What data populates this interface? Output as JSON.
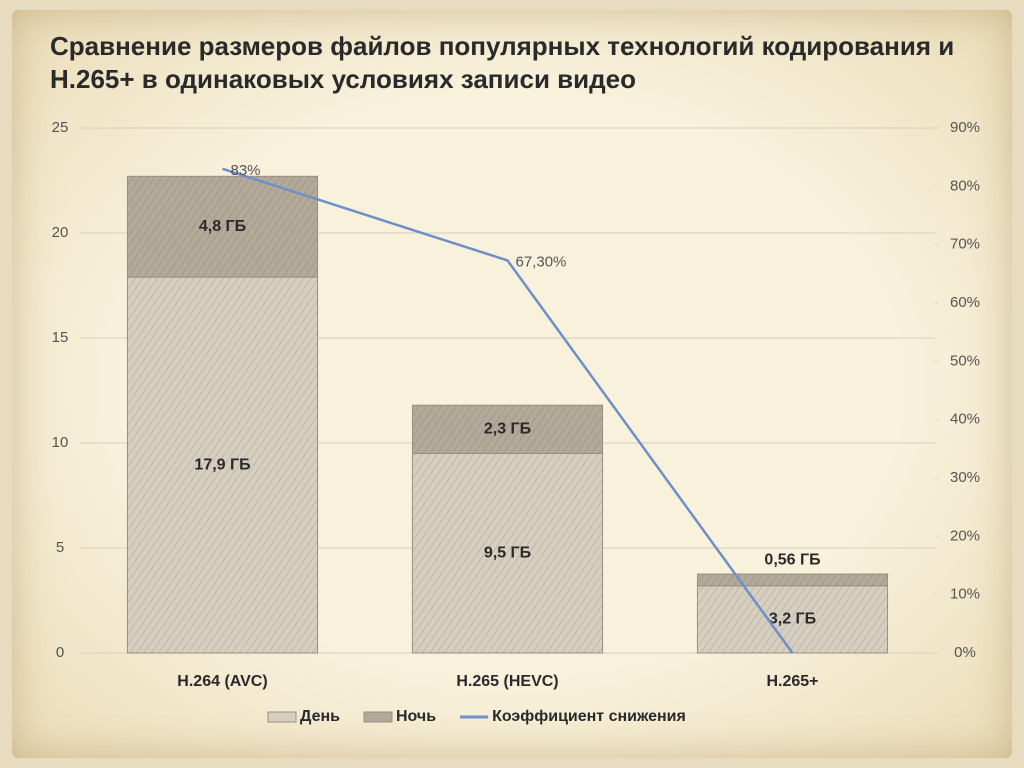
{
  "chart_data": {
    "type": "bar-line",
    "title": "Сравнение размеров файлов популярных технологий кодирования и H.265+ в одинаковых условиях записи видео",
    "categories": [
      "H.264 (AVC)",
      "H.265 (HEVC)",
      "H.265+"
    ],
    "series": [
      {
        "name": "День",
        "type": "bar",
        "color": "#d6cfbf",
        "values": [
          17.9,
          9.5,
          3.2
        ],
        "value_labels": [
          "17,9 ГБ",
          "9,5 ГБ",
          "3,2 ГБ"
        ]
      },
      {
        "name": "Ночь",
        "type": "bar",
        "color": "#b3a998",
        "values": [
          4.8,
          2.3,
          0.56
        ],
        "value_labels": [
          "4,8 ГБ",
          "2,3 ГБ",
          "0,56 ГБ"
        ]
      },
      {
        "name": "Коэффициент снижения",
        "type": "line",
        "axis": "y2",
        "color": "#6f8fc8",
        "values": [
          83,
          67.3,
          0
        ],
        "value_labels": [
          "83%",
          "67,30%",
          null
        ]
      }
    ],
    "stacked": true,
    "ylim": [
      0,
      25
    ],
    "yticks": [
      0,
      5,
      10,
      15,
      20,
      25
    ],
    "y2lim": [
      0,
      90
    ],
    "y2ticks": [
      {
        "value": 0,
        "label": "0%"
      },
      {
        "value": 10,
        "label": "10%"
      },
      {
        "value": 20,
        "label": "20%"
      },
      {
        "value": 30,
        "label": "30%"
      },
      {
        "value": 40,
        "label": "40%"
      },
      {
        "value": 50,
        "label": "50%"
      },
      {
        "value": 60,
        "label": "60%"
      },
      {
        "value": 70,
        "label": "70%"
      },
      {
        "value": 80,
        "label": "80%"
      },
      {
        "value": 90,
        "label": "90%"
      }
    ],
    "grid": true,
    "legend": "bottom"
  }
}
